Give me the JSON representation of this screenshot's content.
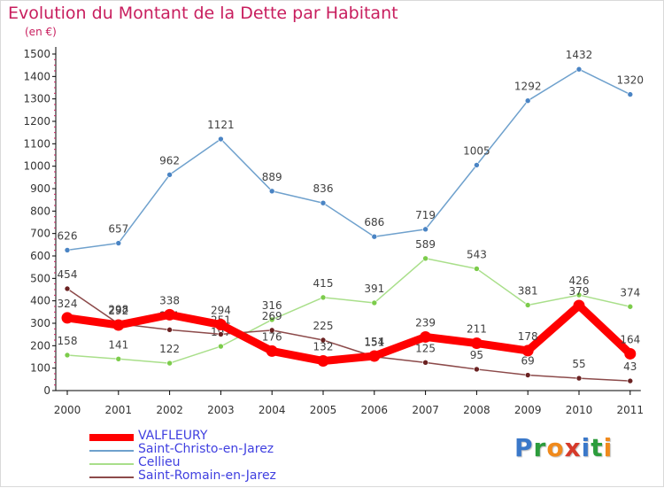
{
  "page": {
    "title": "Evolution du Montant de la Dette par Habitant",
    "unit": "(en €)",
    "brand": "Proxiti"
  },
  "chart_data": {
    "type": "line",
    "title": "Evolution du Montant de la Dette par Habitant",
    "subtitle": "(en €)",
    "xlabel": "",
    "ylabel": "",
    "ylim": [
      0,
      1500
    ],
    "yticks": [
      0,
      100,
      200,
      300,
      400,
      500,
      600,
      700,
      800,
      900,
      1000,
      1100,
      1200,
      1300,
      1400,
      1500
    ],
    "categories": [
      "2000",
      "2001",
      "2002",
      "2003",
      "2004",
      "2005",
      "2006",
      "2007",
      "2008",
      "2009",
      "2010",
      "2011"
    ],
    "grid": false,
    "legend_position": "bottom-left",
    "series": [
      {
        "name": "Saint-Christo-en-Jarez",
        "color": "#6fa1cd",
        "marker": "#4a84c4",
        "emphasis": false,
        "values": [
          626,
          657,
          962,
          1121,
          889,
          836,
          686,
          719,
          1005,
          1292,
          1432,
          1320
        ]
      },
      {
        "name": "Cellieu",
        "color": "#a9df8a",
        "marker": "#7ccc4b",
        "emphasis": false,
        "values": [
          158,
          141,
          122,
          197,
          316,
          415,
          391,
          589,
          543,
          381,
          426,
          374
        ]
      },
      {
        "name": "Saint-Romain-en-Jarez",
        "color": "#8c4a4a",
        "marker": "#6b2222",
        "emphasis": false,
        "values": [
          454,
          298,
          271,
          251,
          269,
          225,
          151,
          125,
          95,
          69,
          55,
          43
        ]
      },
      {
        "name": "VALFLEURY",
        "color": "#ff0000",
        "marker": "#ff0000",
        "emphasis": true,
        "values": [
          324,
          292,
          338,
          294,
          176,
          132,
          154,
          239,
          211,
          178,
          379,
          164
        ]
      }
    ],
    "legend_order": [
      "VALFLEURY",
      "Saint-Christo-en-Jarez",
      "Cellieu",
      "Saint-Romain-en-Jarez"
    ]
  }
}
